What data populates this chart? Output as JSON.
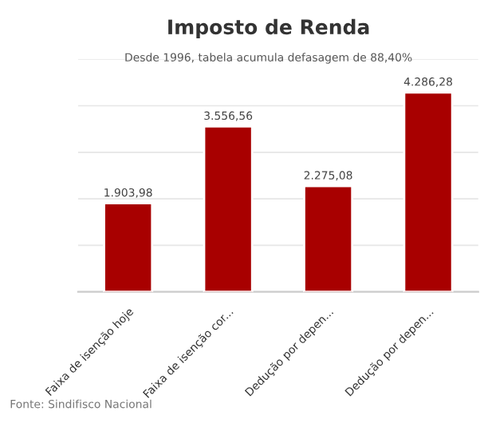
{
  "chart_data": {
    "type": "bar",
    "title": "Imposto de Renda",
    "subtitle": "Desde 1996, tabela acumula defasagem de 88,40%",
    "categories": [
      "Faixa de isenção hoje",
      "Faixa de isenção cor...",
      "Dedução por depen...",
      "Dedução por depen..."
    ],
    "values": [
      1903.98,
      3556.56,
      2275.08,
      4286.28
    ],
    "value_labels": [
      "1.903,98",
      "3.556,56",
      "2.275,08",
      "4.286,28"
    ],
    "color": "#a80000",
    "ylim": [
      0,
      5000
    ],
    "yticks": [
      {
        "value": 0,
        "label": null
      },
      {
        "value": 1000,
        "label": null
      },
      {
        "value": 2000,
        "label": null
      },
      {
        "value": 3000,
        "label": null
      },
      {
        "value": 4000,
        "label": null
      },
      {
        "value": 5000,
        "label": null
      }
    ],
    "grid": "y",
    "annotations": [
      "Fonte: Sindifisco Nacional"
    ]
  }
}
